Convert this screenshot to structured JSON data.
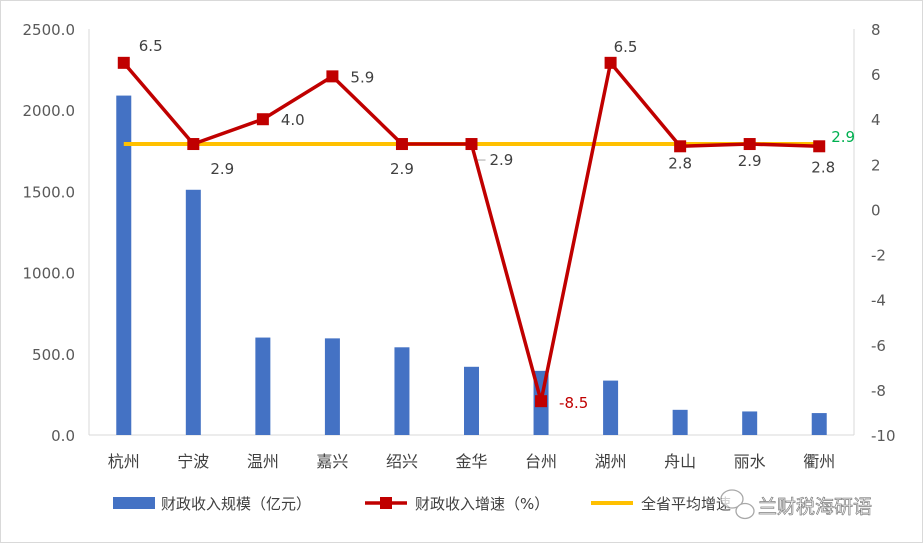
{
  "chart_data": {
    "type": "bar",
    "title": "",
    "categories": [
      "杭州",
      "宁波",
      "温州",
      "嘉兴",
      "绍兴",
      "金华",
      "台州",
      "湖州",
      "舟山",
      "丽水",
      "衢州"
    ],
    "series": [
      {
        "name": "财政收入规模（亿元）",
        "type": "bar",
        "axis": "left",
        "color": "#4472c4",
        "values": [
          2090,
          1510,
          600,
          595,
          540,
          420,
          395,
          335,
          155,
          145,
          135
        ]
      },
      {
        "name": "财政收入增速（%）",
        "type": "line",
        "axis": "right",
        "color": "#c00000",
        "marker": "square",
        "values": [
          6.5,
          2.9,
          4.0,
          5.9,
          2.9,
          2.9,
          -8.5,
          6.5,
          2.8,
          2.9,
          2.8
        ],
        "labels": [
          "6.5",
          "2.9",
          "4.0",
          "5.9",
          "2.9",
          "2.9",
          "-8.5",
          "6.5",
          "2.8",
          "2.9",
          "2.8"
        ],
        "label_color": "#404040",
        "negative_label_color": "#c00000"
      },
      {
        "name": "全省平均增速",
        "type": "line",
        "axis": "right",
        "color": "#ffc000",
        "values": [
          2.9,
          2.9,
          2.9,
          2.9,
          2.9,
          2.9,
          2.9,
          2.9,
          2.9,
          2.9,
          2.9
        ],
        "end_label": "2.9",
        "end_label_color": "#00b050"
      }
    ],
    "y_left": {
      "min": 0,
      "max": 2500,
      "step": 500,
      "tick_labels": [
        "0.0",
        "500.0",
        "1000.0",
        "1500.0",
        "2000.0",
        "2500.0"
      ]
    },
    "y_right": {
      "min": -10,
      "max": 8,
      "step": 2,
      "tick_labels": [
        "-10",
        "-8",
        "-6",
        "-4",
        "-2",
        "0",
        "2",
        "4",
        "6",
        "8"
      ]
    },
    "grid": false,
    "legend_position": "bottom"
  },
  "watermark": {
    "text": "兰财税海研语",
    "icon": "wechat-icon"
  }
}
